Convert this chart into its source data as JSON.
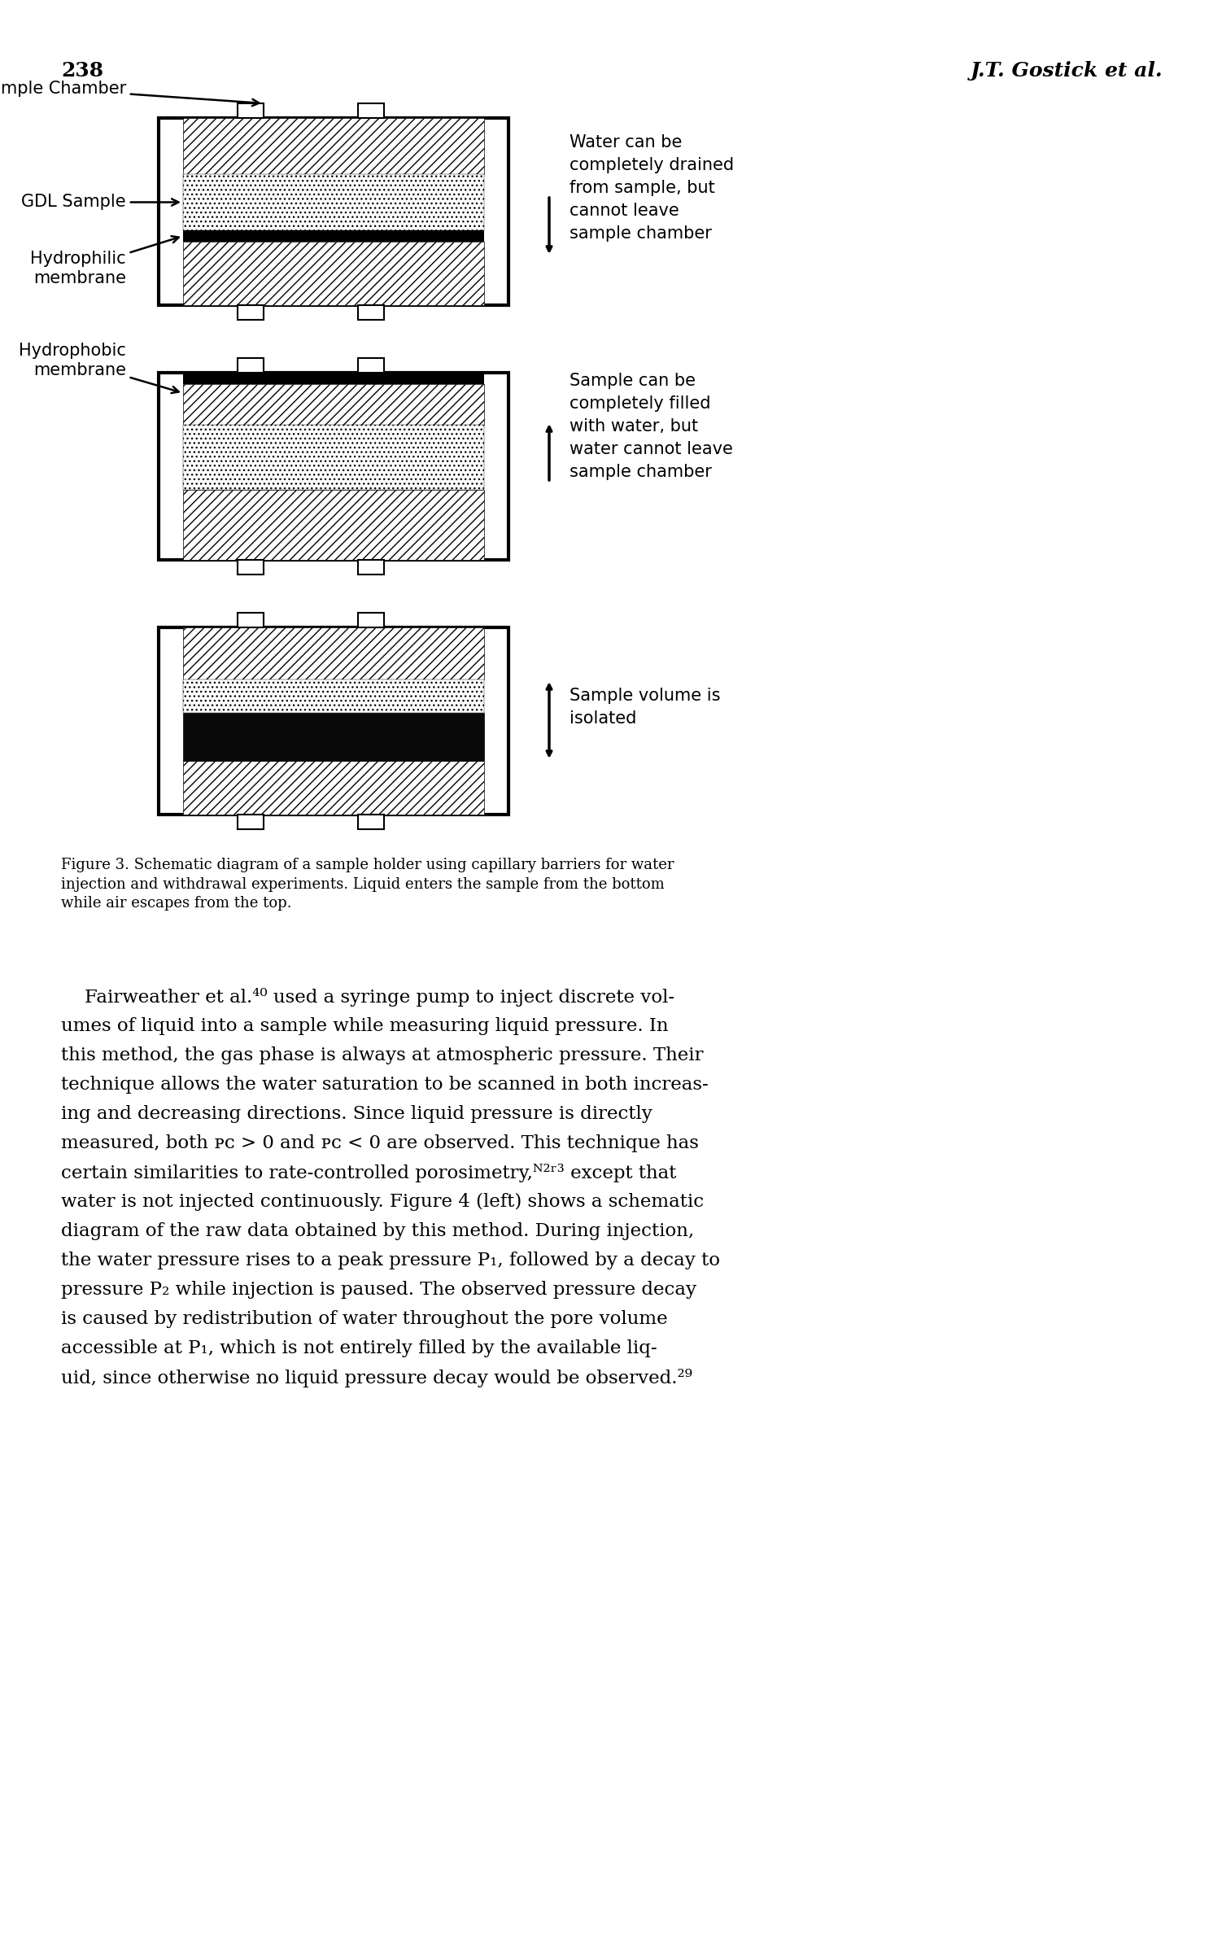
{
  "page_number": "238",
  "header_right": "J.T. Gostick et al.",
  "figure_caption": "Figure 3. Schematic diagram of a sample holder using capillary barriers for water\ninjection and withdrawal experiments. Liquid enters the sample from the bottom\nwhile air escapes from the top.",
  "bg_color": "#ffffff",
  "body_lines": [
    "    Fairweather et al.⁴⁰ used a syringe pump to inject discrete vol-",
    "umes of liquid into a sample while measuring liquid pressure. In",
    "this method, the gas phase is always at atmospheric pressure. Their",
    "technique allows the water saturation to be scanned in both increas-",
    "ing and decreasing directions. Since liquid pressure is directly",
    "measured, both Pᴄ > 0 and Pᴄ < 0 are observed. This technique has",
    "certain similarities to rate-controlled porosimetry,⁵²ʳ⁵³ except that",
    "water is not injected continuously. Figure 4 (left) shows a schematic",
    "diagram of the raw data obtained by this method. During injection,",
    "the water pressure rises to a peak pressure P₁, followed by a decay to",
    "pressure P₂ while injection is paused. The observed pressure decay",
    "is caused by redistribution of water throughout the pore volume",
    "accessible at P₁, which is not entirely filled by the available liq-",
    "uid, since otherwise no liquid pressure decay would be observed.²⁹"
  ]
}
